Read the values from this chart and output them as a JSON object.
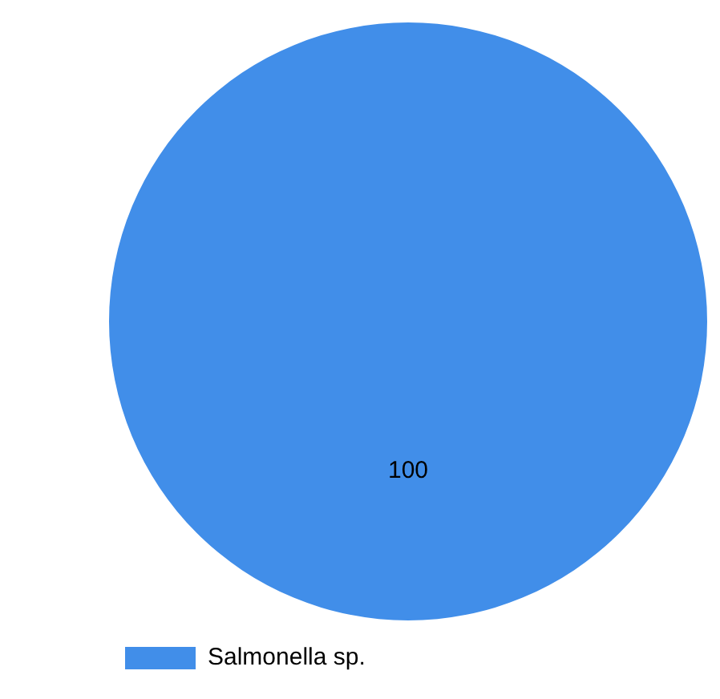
{
  "chart_data": {
    "type": "pie",
    "categories": [
      "Salmonella sp."
    ],
    "values": [
      100
    ],
    "colors": [
      "#418ee9"
    ],
    "data_labels": true,
    "legend": "bottom left"
  }
}
